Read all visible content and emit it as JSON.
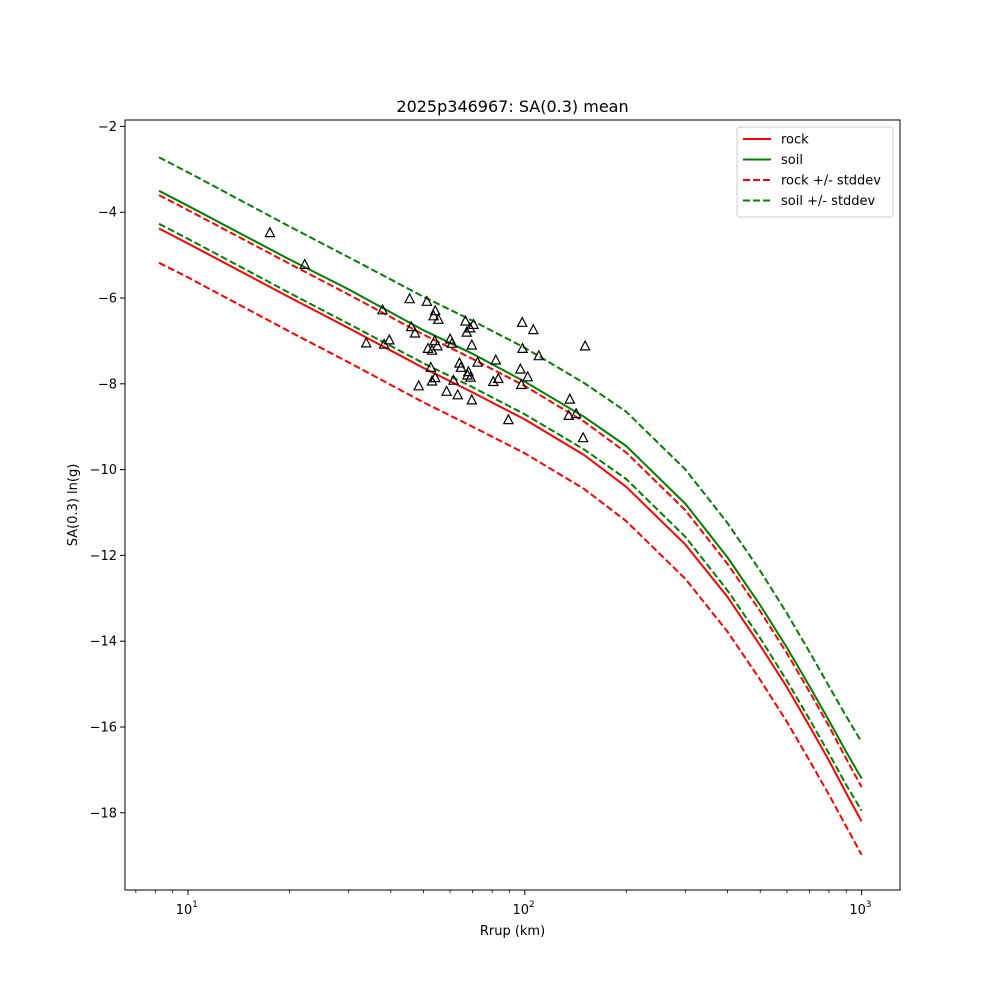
{
  "chart_data": {
    "type": "line",
    "title": "2025p346967: SA(0.3) mean",
    "xlabel": "Rrup (km)",
    "ylabel": "SA(0.3) ln(g)",
    "xscale": "log",
    "xlim": [
      6.5,
      1300
    ],
    "ylim": [
      -19.8,
      -1.85
    ],
    "grid": false,
    "legend_position": "top-right",
    "x_ticks": [
      {
        "value": 10,
        "label": "10",
        "sup": "1"
      },
      {
        "value": 100,
        "label": "10",
        "sup": "2"
      },
      {
        "value": 1000,
        "label": "10",
        "sup": "3"
      }
    ],
    "y_ticks": [
      {
        "value": -2,
        "label": "−2"
      },
      {
        "value": -4,
        "label": "−4"
      },
      {
        "value": -6,
        "label": "−6"
      },
      {
        "value": -8,
        "label": "−8"
      },
      {
        "value": -10,
        "label": "−10"
      },
      {
        "value": -12,
        "label": "−12"
      },
      {
        "value": -14,
        "label": "−14"
      },
      {
        "value": -16,
        "label": "−16"
      },
      {
        "value": -18,
        "label": "−18"
      }
    ],
    "x": [
      8.2,
      10,
      20,
      30,
      50,
      70,
      100,
      150,
      200,
      300,
      400,
      500,
      600,
      700,
      800,
      900,
      1000
    ],
    "series": [
      {
        "name": "rock",
        "color": "#ff0000",
        "dash": false,
        "values": [
          -4.38,
          -4.73,
          -5.98,
          -6.7,
          -7.63,
          -8.2,
          -8.83,
          -9.66,
          -10.4,
          -11.75,
          -12.97,
          -14.1,
          -15.07,
          -15.98,
          -16.78,
          -17.54,
          -18.2
        ]
      },
      {
        "name": "soil",
        "color": "#008000",
        "dash": false,
        "values": [
          -3.5,
          -3.85,
          -5.1,
          -5.8,
          -6.75,
          -7.3,
          -7.95,
          -8.77,
          -9.45,
          -10.8,
          -12.05,
          -13.16,
          -14.15,
          -15.05,
          -15.85,
          -16.58,
          -17.2
        ]
      },
      {
        "name": "rock +/- stddev",
        "color": "#ff0000",
        "dash": true,
        "values": [
          -3.6,
          -3.95,
          -5.2,
          -5.92,
          -6.85,
          -7.42,
          -8.05,
          -8.88,
          -9.6,
          -10.95,
          -12.2,
          -13.3,
          -14.28,
          -15.18,
          -15.98,
          -16.74,
          -17.4
        ]
      },
      {
        "name": "",
        "color": "#ff0000",
        "dash": true,
        "values": [
          -5.18,
          -5.52,
          -6.78,
          -7.5,
          -8.43,
          -9.0,
          -9.62,
          -10.45,
          -11.2,
          -12.55,
          -13.78,
          -14.9,
          -15.88,
          -16.78,
          -17.58,
          -18.32,
          -18.98
        ]
      },
      {
        "name": "soil +/- stddev",
        "color": "#008000",
        "dash": true,
        "values": [
          -2.72,
          -3.07,
          -4.33,
          -5.05,
          -5.97,
          -6.53,
          -7.16,
          -7.98,
          -8.65,
          -10.0,
          -11.25,
          -12.36,
          -13.35,
          -14.25,
          -15.05,
          -15.75,
          -16.35
        ]
      },
      {
        "name": "",
        "color": "#008000",
        "dash": true,
        "values": [
          -4.27,
          -4.62,
          -5.88,
          -6.6,
          -7.52,
          -8.08,
          -8.71,
          -9.53,
          -10.22,
          -11.57,
          -12.82,
          -13.93,
          -14.92,
          -15.82,
          -16.62,
          -17.35,
          -17.95
        ]
      }
    ],
    "observations": {
      "marker": "triangle",
      "color": "#000000",
      "points": [
        [
          17.5,
          -4.48
        ],
        [
          22.2,
          -5.22
        ],
        [
          33.8,
          -7.05
        ],
        [
          37.8,
          -6.28
        ],
        [
          38.2,
          -7.08
        ],
        [
          39.6,
          -6.98
        ],
        [
          45.5,
          -6.02
        ],
        [
          46.0,
          -6.67
        ],
        [
          47.2,
          -6.82
        ],
        [
          48.4,
          -8.05
        ],
        [
          51.2,
          -6.08
        ],
        [
          51.6,
          -7.18
        ],
        [
          52.6,
          -7.62
        ],
        [
          53.0,
          -7.22
        ],
        [
          53.0,
          -7.94
        ],
        [
          53.6,
          -6.42
        ],
        [
          54.0,
          -7.0
        ],
        [
          54.2,
          -6.3
        ],
        [
          54.2,
          -7.86
        ],
        [
          55.0,
          -7.12
        ],
        [
          55.4,
          -6.5
        ],
        [
          58.6,
          -8.18
        ],
        [
          60.0,
          -6.96
        ],
        [
          60.8,
          -7.06
        ],
        [
          61.4,
          -7.92
        ],
        [
          63.2,
          -8.26
        ],
        [
          64.0,
          -7.52
        ],
        [
          64.6,
          -7.62
        ],
        [
          66.6,
          -6.54
        ],
        [
          67.2,
          -6.8
        ],
        [
          67.6,
          -7.8
        ],
        [
          68.0,
          -7.72
        ],
        [
          68.8,
          -6.7
        ],
        [
          69.0,
          -7.85
        ],
        [
          69.6,
          -7.1
        ],
        [
          69.6,
          -8.38
        ],
        [
          70.4,
          -6.62
        ],
        [
          72.4,
          -7.5
        ],
        [
          80.6,
          -7.95
        ],
        [
          82.0,
          -7.45
        ],
        [
          83.4,
          -7.88
        ],
        [
          89.4,
          -8.84
        ],
        [
          97.0,
          -7.66
        ],
        [
          97.6,
          -8.02
        ],
        [
          98.2,
          -6.57
        ],
        [
          98.4,
          -7.18
        ],
        [
          102.0,
          -7.84
        ],
        [
          106.0,
          -6.74
        ],
        [
          110.0,
          -7.35
        ],
        [
          135.0,
          -8.74
        ],
        [
          136.0,
          -8.36
        ],
        [
          142.0,
          -8.7
        ],
        [
          149.0,
          -9.26
        ],
        [
          151.0,
          -7.12
        ]
      ]
    }
  }
}
